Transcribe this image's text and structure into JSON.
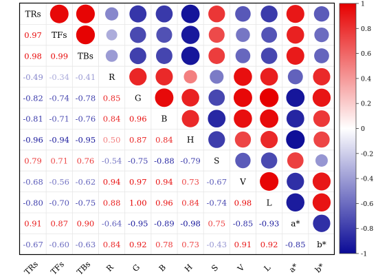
{
  "chart_data": {
    "type": "heatmap",
    "title": "",
    "variables": [
      "TRs",
      "TFs",
      "TBs",
      "R",
      "G",
      "B",
      "H",
      "S",
      "V",
      "L",
      "a*",
      "b*"
    ],
    "matrix": [
      [
        1.0,
        0.97,
        0.98,
        -0.49,
        -0.82,
        -0.81,
        -0.96,
        0.79,
        -0.68,
        -0.8,
        0.91,
        -0.67
      ],
      [
        0.97,
        1.0,
        0.99,
        -0.34,
        -0.74,
        -0.71,
        -0.94,
        0.71,
        -0.56,
        -0.7,
        0.87,
        -0.6
      ],
      [
        0.98,
        0.99,
        1.0,
        -0.41,
        -0.78,
        -0.76,
        -0.95,
        0.76,
        -0.62,
        -0.75,
        0.9,
        -0.63
      ],
      [
        -0.49,
        -0.34,
        -0.41,
        1.0,
        0.85,
        0.84,
        0.5,
        -0.54,
        0.94,
        0.88,
        -0.64,
        0.84
      ],
      [
        -0.82,
        -0.74,
        -0.78,
        0.85,
        1.0,
        0.96,
        0.87,
        -0.75,
        0.97,
        1.0,
        -0.95,
        0.92
      ],
      [
        -0.81,
        -0.71,
        -0.76,
        0.84,
        0.96,
        1.0,
        0.84,
        -0.88,
        0.94,
        0.96,
        -0.89,
        0.78
      ],
      [
        -0.96,
        -0.94,
        -0.95,
        0.5,
        0.87,
        0.84,
        1.0,
        -0.79,
        0.73,
        0.84,
        -0.98,
        0.73
      ],
      [
        0.79,
        0.71,
        0.76,
        -0.54,
        -0.75,
        -0.88,
        -0.79,
        1.0,
        -0.67,
        -0.74,
        0.75,
        -0.43
      ],
      [
        -0.68,
        -0.56,
        -0.62,
        0.94,
        0.97,
        0.94,
        0.73,
        -0.67,
        1.0,
        0.98,
        -0.85,
        0.91
      ],
      [
        -0.8,
        -0.7,
        -0.75,
        0.88,
        1.0,
        0.96,
        0.84,
        -0.74,
        0.98,
        1.0,
        -0.93,
        0.92
      ],
      [
        0.91,
        0.87,
        0.9,
        -0.64,
        -0.95,
        -0.89,
        -0.98,
        0.75,
        -0.85,
        -0.93,
        1.0,
        -0.85
      ],
      [
        -0.67,
        -0.6,
        -0.63,
        0.84,
        0.92,
        0.78,
        0.73,
        -0.43,
        0.91,
        0.92,
        -0.85,
        1.0
      ]
    ],
    "lower_triangle_labels": [
      [],
      [
        "0.97"
      ],
      [
        "0.98",
        "0.99"
      ],
      [
        "-0.49",
        "-0.34",
        "-0.41"
      ],
      [
        "-0.82",
        "-0.74",
        "-0.78",
        "0.85"
      ],
      [
        "-0.81",
        "-0.71",
        "-0.76",
        "0.84",
        "0.96"
      ],
      [
        "-0.96",
        "-0.94",
        "-0.95",
        "0.50",
        "0.87",
        "0.84"
      ],
      [
        "0.79",
        "0.71",
        "0.76",
        "-0.54",
        "-0.75",
        "-0.88",
        "-0.79"
      ],
      [
        "-0.68",
        "-0.56",
        "-0.62",
        "0.94",
        "0.97",
        "0.94",
        "0.73",
        "-0.67"
      ],
      [
        "-0.80",
        "-0.70",
        "-0.75",
        "0.88",
        "1.00",
        "0.96",
        "0.84",
        "-0.74",
        "0.98"
      ],
      [
        "0.91",
        "0.87",
        "0.90",
        "-0.64",
        "-0.95",
        "-0.89",
        "-0.98",
        "0.75",
        "-0.85",
        "-0.93"
      ],
      [
        "-0.67",
        "-0.60",
        "-0.63",
        "0.84",
        "0.92",
        "0.78",
        "0.73",
        "-0.43",
        "0.91",
        "0.92",
        "-0.85"
      ]
    ],
    "upper_triangle": "circles",
    "lower_triangle": "numbers",
    "color_range": [
      -1,
      1
    ],
    "colorbar_ticks": [
      "1",
      "0.8",
      "0.6",
      "0.4",
      "0.2",
      "0",
      "-0.2",
      "-0.4",
      "-0.6",
      "-0.8",
      "-1"
    ],
    "colors": {
      "negative": "#0a0a96",
      "neutral": "#ffffff",
      "positive": "#e60000"
    },
    "legend_position": "right",
    "grid": true
  }
}
